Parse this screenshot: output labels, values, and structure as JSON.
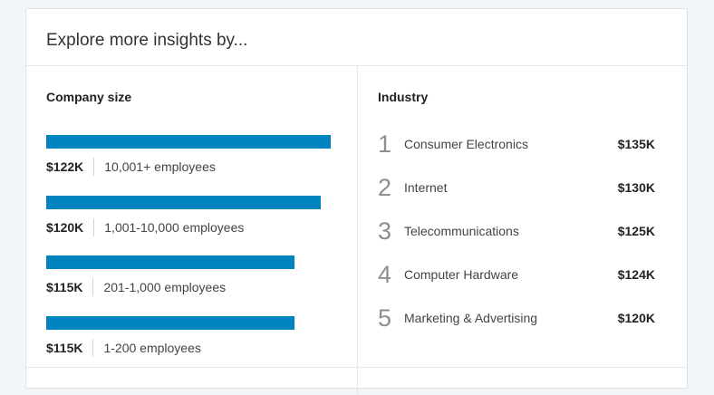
{
  "card": {
    "title": "Explore more insights by..."
  },
  "company_size": {
    "title": "Company size",
    "items": [
      {
        "salary": "$122K",
        "label": "10,001+ employees",
        "value": 122
      },
      {
        "salary": "$120K",
        "label": "1,001-10,000 employees",
        "value": 120
      },
      {
        "salary": "$115K",
        "label": "201-1,000 employees",
        "value": 115
      },
      {
        "salary": "$115K",
        "label": "1-200 employees",
        "value": 115
      }
    ],
    "bar_color": "#0084bf"
  },
  "industry": {
    "title": "Industry",
    "items": [
      {
        "rank": "1",
        "name": "Consumer Electronics",
        "salary": "$135K"
      },
      {
        "rank": "2",
        "name": "Internet",
        "salary": "$130K"
      },
      {
        "rank": "3",
        "name": "Telecommunications",
        "salary": "$125K"
      },
      {
        "rank": "4",
        "name": "Computer Hardware",
        "salary": "$124K"
      },
      {
        "rank": "5",
        "name": "Marketing & Advertising",
        "salary": "$120K"
      }
    ]
  }
}
